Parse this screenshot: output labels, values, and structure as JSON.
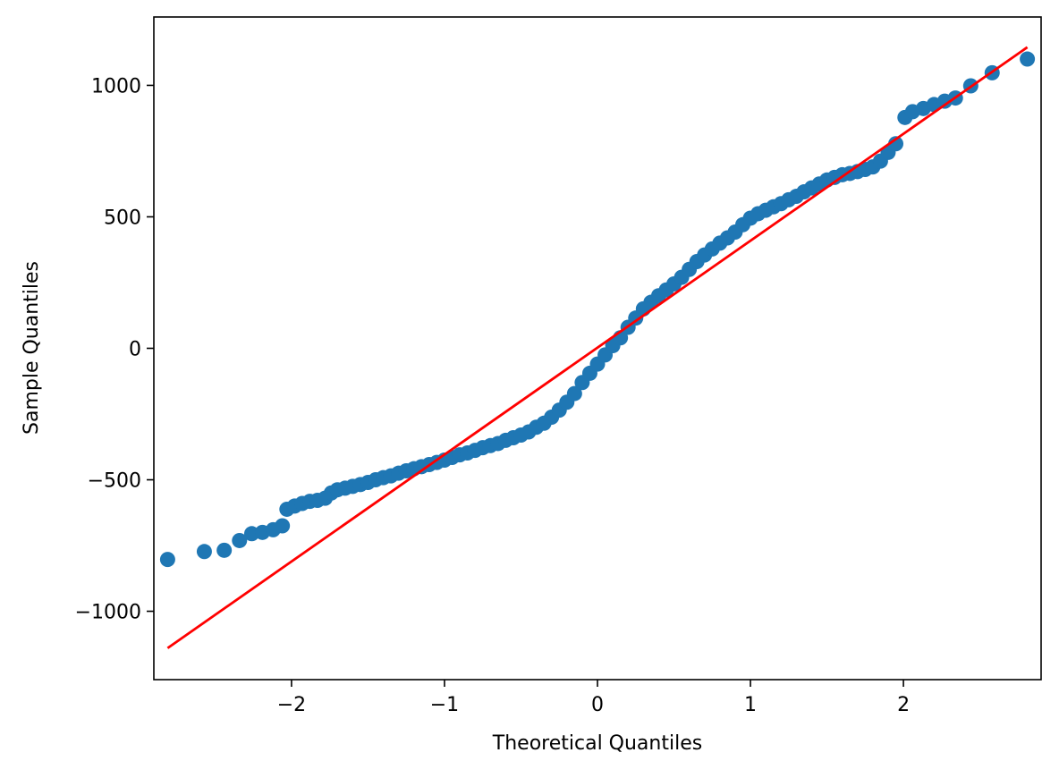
{
  "chart_data": {
    "type": "scatter",
    "title": "",
    "xlabel": "Theoretical Quantiles",
    "ylabel": "Sample Quantiles",
    "xlim": [
      -2.9,
      2.9
    ],
    "ylim": [
      -1260,
      1260
    ],
    "x_ticks": [
      -2,
      -1,
      0,
      1,
      2
    ],
    "x_tick_labels": [
      "−2",
      "−1",
      "0",
      "1",
      "2"
    ],
    "y_ticks": [
      -1000,
      -500,
      0,
      500,
      1000
    ],
    "y_tick_labels": [
      "−1000",
      "−500",
      "0",
      "500",
      "1000"
    ],
    "grid": false,
    "legend": "none",
    "series": [
      {
        "kind": "points",
        "color": "#1f77b4",
        "points": [
          [
            -2.81,
            -803
          ],
          [
            -2.57,
            -773
          ],
          [
            -2.44,
            -768
          ],
          [
            -2.34,
            -731
          ],
          [
            -2.26,
            -705
          ],
          [
            -2.19,
            -700
          ],
          [
            -2.12,
            -690
          ],
          [
            -2.06,
            -675
          ],
          [
            -2.03,
            -612
          ],
          [
            -1.98,
            -600
          ],
          [
            -1.93,
            -590
          ],
          [
            -1.88,
            -582
          ],
          [
            -1.83,
            -578
          ],
          [
            -1.78,
            -570
          ],
          [
            -1.74,
            -550
          ],
          [
            -1.7,
            -538
          ],
          [
            -1.65,
            -532
          ],
          [
            -1.6,
            -525
          ],
          [
            -1.55,
            -518
          ],
          [
            -1.5,
            -510
          ],
          [
            -1.45,
            -500
          ],
          [
            -1.4,
            -492
          ],
          [
            -1.35,
            -485
          ],
          [
            -1.3,
            -475
          ],
          [
            -1.25,
            -466
          ],
          [
            -1.2,
            -458
          ],
          [
            -1.15,
            -450
          ],
          [
            -1.1,
            -442
          ],
          [
            -1.05,
            -434
          ],
          [
            -1.0,
            -425
          ],
          [
            -0.95,
            -415
          ],
          [
            -0.9,
            -405
          ],
          [
            -0.85,
            -398
          ],
          [
            -0.8,
            -388
          ],
          [
            -0.75,
            -378
          ],
          [
            -0.7,
            -370
          ],
          [
            -0.65,
            -362
          ],
          [
            -0.6,
            -350
          ],
          [
            -0.55,
            -340
          ],
          [
            -0.5,
            -330
          ],
          [
            -0.45,
            -318
          ],
          [
            -0.4,
            -300
          ],
          [
            -0.35,
            -285
          ],
          [
            -0.3,
            -262
          ],
          [
            -0.25,
            -235
          ],
          [
            -0.2,
            -205
          ],
          [
            -0.15,
            -172
          ],
          [
            -0.1,
            -130
          ],
          [
            -0.05,
            -95
          ],
          [
            0.0,
            -60
          ],
          [
            0.05,
            -25
          ],
          [
            0.1,
            10
          ],
          [
            0.15,
            40
          ],
          [
            0.2,
            80
          ],
          [
            0.25,
            115
          ],
          [
            0.3,
            150
          ],
          [
            0.35,
            175
          ],
          [
            0.4,
            200
          ],
          [
            0.45,
            222
          ],
          [
            0.5,
            245
          ],
          [
            0.55,
            270
          ],
          [
            0.6,
            300
          ],
          [
            0.65,
            330
          ],
          [
            0.7,
            355
          ],
          [
            0.75,
            378
          ],
          [
            0.8,
            400
          ],
          [
            0.85,
            420
          ],
          [
            0.9,
            442
          ],
          [
            0.95,
            470
          ],
          [
            1.0,
            495
          ],
          [
            1.05,
            512
          ],
          [
            1.1,
            525
          ],
          [
            1.15,
            538
          ],
          [
            1.2,
            550
          ],
          [
            1.25,
            565
          ],
          [
            1.3,
            578
          ],
          [
            1.35,
            595
          ],
          [
            1.4,
            610
          ],
          [
            1.45,
            625
          ],
          [
            1.5,
            640
          ],
          [
            1.55,
            650
          ],
          [
            1.6,
            660
          ],
          [
            1.65,
            665
          ],
          [
            1.7,
            672
          ],
          [
            1.75,
            680
          ],
          [
            1.8,
            690
          ],
          [
            1.85,
            712
          ],
          [
            1.9,
            745
          ],
          [
            1.95,
            778
          ],
          [
            2.01,
            878
          ],
          [
            2.06,
            900
          ],
          [
            2.13,
            912
          ],
          [
            2.2,
            927
          ],
          [
            2.27,
            940
          ],
          [
            2.34,
            952
          ],
          [
            2.44,
            998
          ],
          [
            2.58,
            1048
          ],
          [
            2.81,
            1100
          ]
        ]
      },
      {
        "kind": "line",
        "color": "#ff0000",
        "points": [
          [
            -2.81,
            -1140
          ],
          [
            2.81,
            1145
          ]
        ]
      }
    ]
  }
}
